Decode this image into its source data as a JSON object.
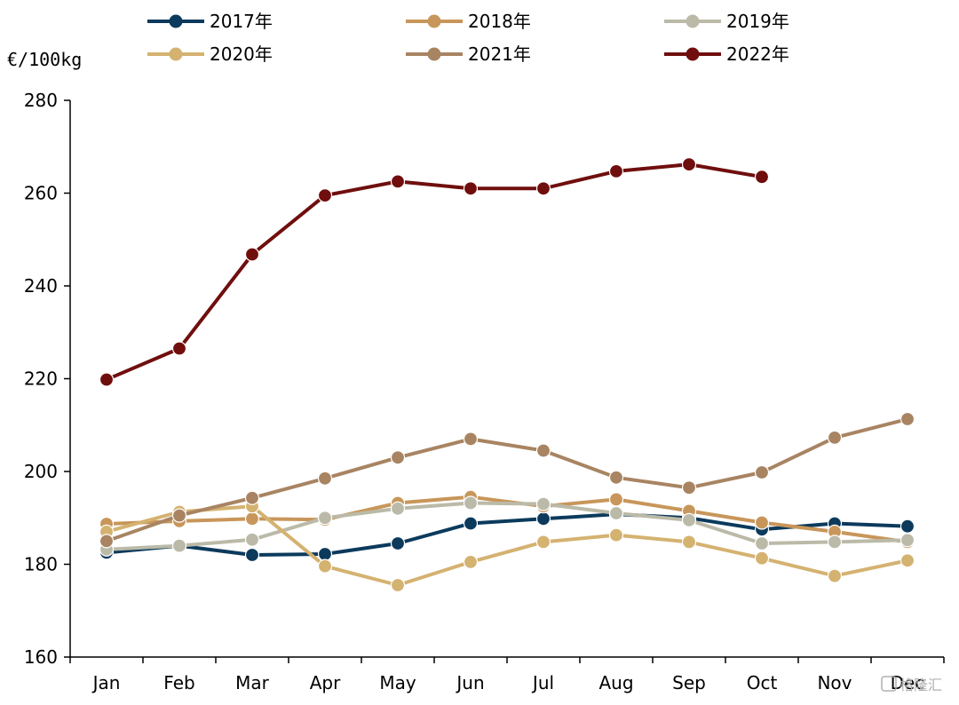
{
  "chart_data": {
    "type": "line",
    "title": "",
    "xlabel": "",
    "ylabel": "€/100kg",
    "ylim": [
      160,
      280
    ],
    "yticks": [
      160,
      180,
      200,
      220,
      240,
      260,
      280
    ],
    "grid": false,
    "legend_position": "top",
    "categories": [
      "Jan",
      "Feb",
      "Mar",
      "Apr",
      "May",
      "Jun",
      "Jul",
      "Aug",
      "Sep",
      "Oct",
      "Nov",
      "Dec"
    ],
    "series": [
      {
        "name": "2017年",
        "color": "#0b3a5c",
        "values": [
          182.5,
          184.0,
          182.0,
          182.2,
          184.5,
          188.8,
          189.8,
          190.8,
          190.0,
          187.5,
          188.8,
          188.2
        ]
      },
      {
        "name": "2018年",
        "color": "#c8965a",
        "values": [
          188.7,
          189.3,
          189.8,
          189.6,
          193.2,
          194.5,
          192.5,
          194.0,
          191.5,
          189.0,
          187.0,
          184.8
        ]
      },
      {
        "name": "2019年",
        "color": "#bbbaa8",
        "values": [
          183.2,
          184.0,
          185.3,
          190.0,
          192.0,
          193.2,
          193.0,
          191.0,
          189.5,
          184.5,
          184.8,
          185.2
        ]
      },
      {
        "name": "2020年",
        "color": "#d4b270",
        "values": [
          187.0,
          191.3,
          192.5,
          179.6,
          175.5,
          180.5,
          184.8,
          186.3,
          184.8,
          181.3,
          177.5,
          180.8
        ]
      },
      {
        "name": "2021年",
        "color": "#a88462",
        "values": [
          185.0,
          190.5,
          194.3,
          198.5,
          203.0,
          207.0,
          204.5,
          198.7,
          196.5,
          199.8,
          207.3,
          211.3
        ]
      },
      {
        "name": "2022年",
        "color": "#700e0e",
        "values": [
          219.8,
          226.5,
          246.8,
          259.5,
          262.5,
          261.0,
          261.0,
          264.7,
          266.2,
          263.5,
          null,
          null
        ]
      }
    ]
  },
  "watermark": {
    "text": "格隆汇"
  }
}
